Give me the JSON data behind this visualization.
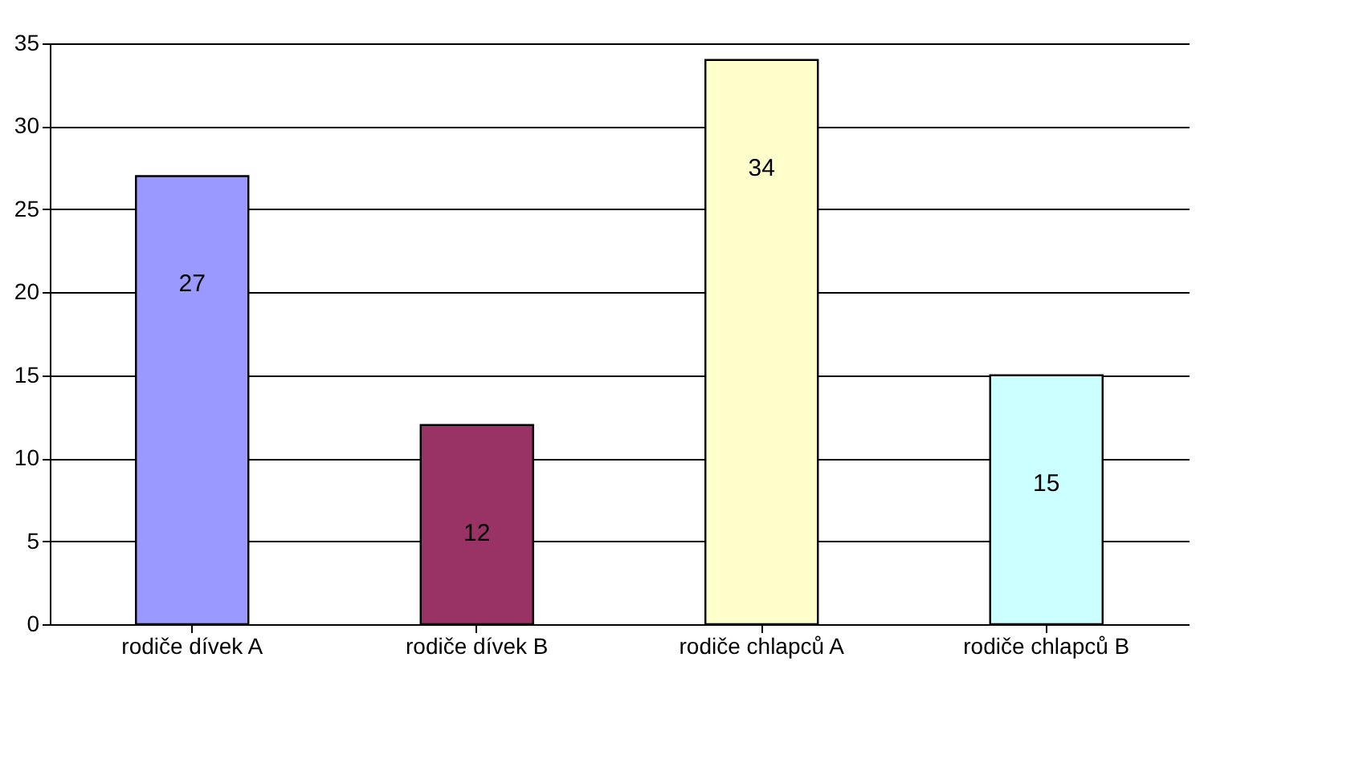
{
  "chart_data": {
    "type": "bar",
    "categories": [
      "rodiče dívek A",
      "rodiče dívek B",
      "rodiče chlapců A",
      "rodiče chlapců B"
    ],
    "values": [
      27,
      12,
      34,
      15
    ],
    "colors": [
      "#9999ff",
      "#993366",
      "#ffffcc",
      "#ccffff"
    ],
    "ylim": [
      0,
      35
    ],
    "yticks": [
      0,
      5,
      10,
      15,
      20,
      25,
      30,
      35
    ],
    "grid": "y",
    "data_labels": true
  }
}
